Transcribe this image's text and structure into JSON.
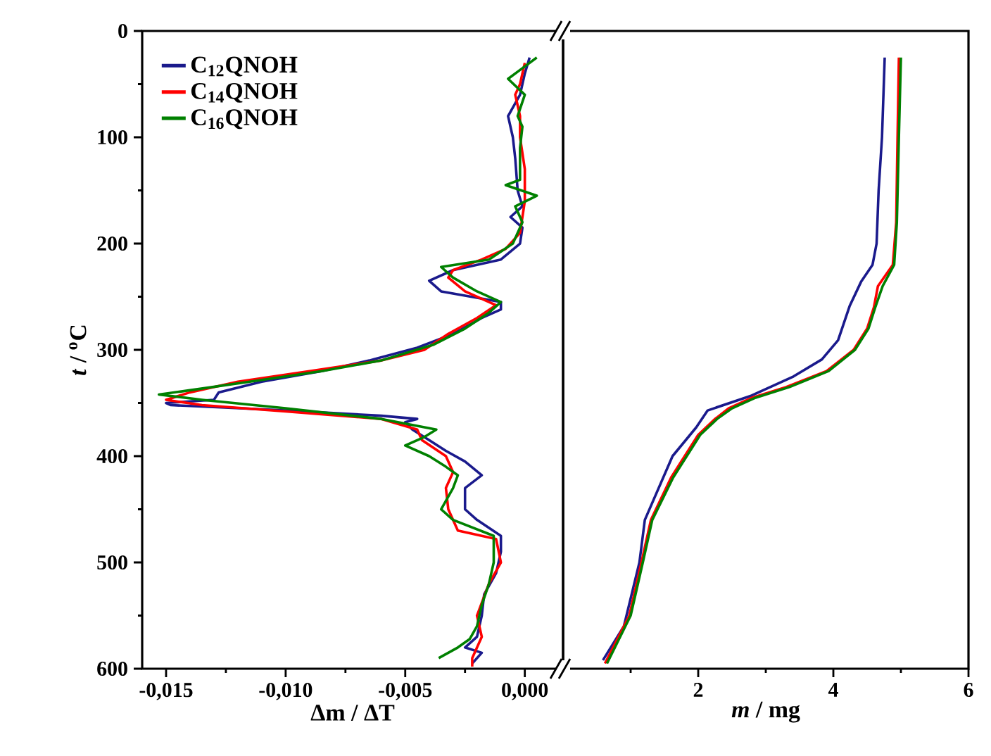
{
  "chart_data": [
    {
      "type": "line",
      "xlabel": "Δm / ΔT",
      "ylabel": "*t* / $^{o}$C",
      "legend": "top left",
      "grid": false,
      "xlim": [
        -0.016,
        0.0016
      ],
      "ylim": [
        600,
        0
      ],
      "xticks": [
        {
          "value": -0.015,
          "label": "-0,015"
        },
        {
          "value": -0.01,
          "label": "-0,010"
        },
        {
          "value": -0.005,
          "label": "-0,005"
        },
        {
          "value": 0,
          "label": "0,000"
        }
      ],
      "yticks": [
        0,
        100,
        200,
        300,
        400,
        500,
        600
      ],
      "series": [
        {
          "name": "C$_{12}$QNOH",
          "color": "#1a1a8c",
          "x": [
            0.0002,
            0.0,
            -0.0002,
            -0.0007,
            -0.0005,
            -0.0004,
            -0.0003,
            -0.0001,
            -0.0006,
            -0.0001,
            -0.0002,
            -0.001,
            -0.003,
            -0.004,
            -0.0035,
            -0.001,
            -0.001,
            -0.0018,
            -0.003,
            -0.0045,
            -0.0065,
            -0.0085,
            -0.011,
            -0.0128,
            -0.013,
            -0.015,
            -0.0148,
            -0.01,
            -0.006,
            -0.0045,
            -0.005,
            -0.0047,
            -0.004,
            -0.0033,
            -0.0025,
            -0.0018,
            -0.0025,
            -0.0025,
            -0.002,
            -0.001,
            -0.001,
            -0.0012,
            -0.0017,
            -0.0018,
            -0.002,
            -0.0025,
            -0.0018,
            -0.0022
          ],
          "values": [
            25,
            40,
            60,
            80,
            100,
            120,
            150,
            165,
            175,
            185,
            200,
            215,
            225,
            235,
            245,
            255,
            262,
            270,
            285,
            298,
            310,
            320,
            330,
            340,
            347,
            350,
            352,
            357,
            362,
            365,
            368,
            375,
            385,
            395,
            405,
            418,
            430,
            450,
            460,
            475,
            490,
            510,
            530,
            550,
            570,
            580,
            585,
            595
          ]
        },
        {
          "name": "C$_{14}$QNOH",
          "color": "#ff0000",
          "x": [
            0.0,
            -0.0002,
            -0.0004,
            -0.0002,
            -0.0002,
            0.0,
            0.0,
            -0.0002,
            -0.0008,
            -0.0018,
            -0.003,
            -0.0032,
            -0.0025,
            -0.0012,
            -0.002,
            -0.0032,
            -0.0042,
            -0.006,
            -0.009,
            -0.012,
            -0.014,
            -0.015,
            -0.0135,
            -0.01,
            -0.006,
            -0.0045,
            -0.0043,
            -0.0033,
            -0.003,
            -0.0033,
            -0.0032,
            -0.0028,
            -0.0012,
            -0.001,
            -0.0015,
            -0.002,
            -0.0018,
            -0.0022,
            -0.0022
          ],
          "values": [
            30,
            50,
            60,
            80,
            100,
            130,
            160,
            190,
            205,
            215,
            225,
            232,
            245,
            258,
            270,
            285,
            300,
            310,
            320,
            330,
            340,
            347,
            352,
            358,
            365,
            375,
            385,
            400,
            415,
            430,
            450,
            470,
            478,
            500,
            520,
            550,
            570,
            590,
            598
          ]
        },
        {
          "name": "C$_{16}$QNOH",
          "color": "#008000",
          "x": [
            0.0005,
            -0.0001,
            -0.0007,
            0.0,
            -0.0003,
            -0.0001,
            -0.0002,
            -0.0002,
            -0.0008,
            0.0005,
            -0.0004,
            -0.0001,
            -0.0005,
            -0.0015,
            -0.0035,
            -0.003,
            -0.002,
            -0.001,
            -0.0015,
            -0.0025,
            -0.0038,
            -0.006,
            -0.0085,
            -0.0115,
            -0.014,
            -0.0153,
            -0.0135,
            -0.01,
            -0.006,
            -0.0037,
            -0.0042,
            -0.005,
            -0.004,
            -0.0033,
            -0.0028,
            -0.003,
            -0.0035,
            -0.003,
            -0.0013,
            -0.0013,
            -0.0015,
            -0.0018,
            -0.002,
            -0.0023,
            -0.0028,
            -0.0036
          ],
          "values": [
            25,
            35,
            45,
            60,
            80,
            90,
            110,
            140,
            145,
            155,
            165,
            180,
            200,
            215,
            222,
            232,
            245,
            255,
            265,
            280,
            295,
            310,
            320,
            330,
            338,
            342,
            347,
            355,
            365,
            375,
            382,
            390,
            400,
            410,
            418,
            430,
            450,
            460,
            475,
            500,
            520,
            540,
            560,
            572,
            580,
            590
          ]
        }
      ]
    },
    {
      "type": "line",
      "xlabel": "*m* / mg",
      "tick_labels": "x",
      "grid": false,
      "xlim": [
        0,
        6
      ],
      "ylim": [
        600,
        0
      ],
      "xticks": [
        {
          "value": 0,
          "label": null
        },
        2,
        4,
        6
      ],
      "series": [
        {
          "color": "#1a1a8c",
          "x": [
            4.76,
            4.72,
            4.67,
            4.64,
            4.58,
            4.41,
            4.24,
            4.07,
            3.83,
            3.41,
            2.79,
            2.14,
            1.97,
            1.62,
            1.21,
            1.13,
            0.9,
            0.59
          ],
          "values": [
            25,
            100,
            150,
            200,
            220,
            236,
            259,
            291,
            309,
            325,
            343,
            357,
            373,
            400,
            460,
            500,
            560,
            592
          ]
        },
        {
          "color": "#ff0000",
          "x": [
            4.97,
            4.95,
            4.93,
            4.88,
            4.66,
            4.6,
            4.5,
            4.3,
            3.9,
            3.3,
            2.8,
            2.45,
            2.25,
            2.0,
            1.6,
            1.3,
            1.16,
            0.98,
            0.62
          ],
          "values": [
            25,
            100,
            180,
            220,
            240,
            260,
            280,
            300,
            320,
            335,
            345,
            355,
            365,
            380,
            420,
            460,
            500,
            550,
            595
          ]
        },
        {
          "color": "#008000",
          "x": [
            5.0,
            4.97,
            4.94,
            4.9,
            4.73,
            4.62,
            4.52,
            4.32,
            3.93,
            3.35,
            2.85,
            2.5,
            2.28,
            2.03,
            1.63,
            1.32,
            1.18,
            1.0,
            0.65
          ],
          "values": [
            25,
            100,
            180,
            220,
            240,
            260,
            280,
            300,
            320,
            335,
            345,
            355,
            365,
            380,
            420,
            460,
            500,
            550,
            595
          ]
        }
      ]
    }
  ]
}
